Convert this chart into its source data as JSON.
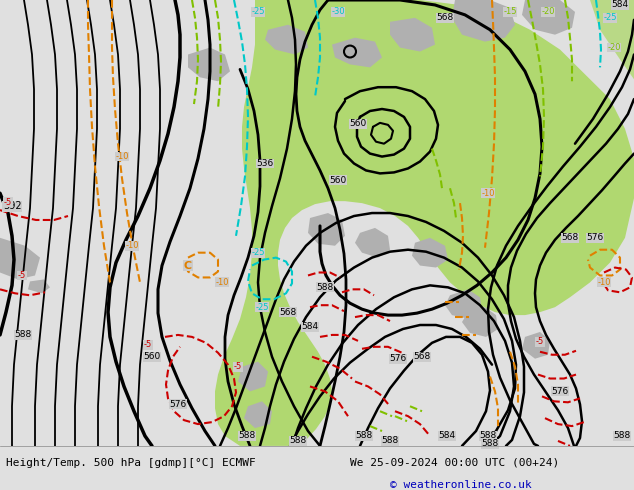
{
  "title_left": "Height/Temp. 500 hPa [gdmp][°C] ECMWF",
  "title_right": "We 25-09-2024 00:00 UTC (00+24)",
  "copyright": "© weatheronline.co.uk",
  "bg_color": "#cccccc",
  "ocean_color": "#cccccc",
  "land_gray_color": "#b0b0b0",
  "green_color": "#b0d870",
  "bottom_color": "#e0e0e0",
  "figsize": [
    6.34,
    4.9
  ],
  "dpi": 100
}
